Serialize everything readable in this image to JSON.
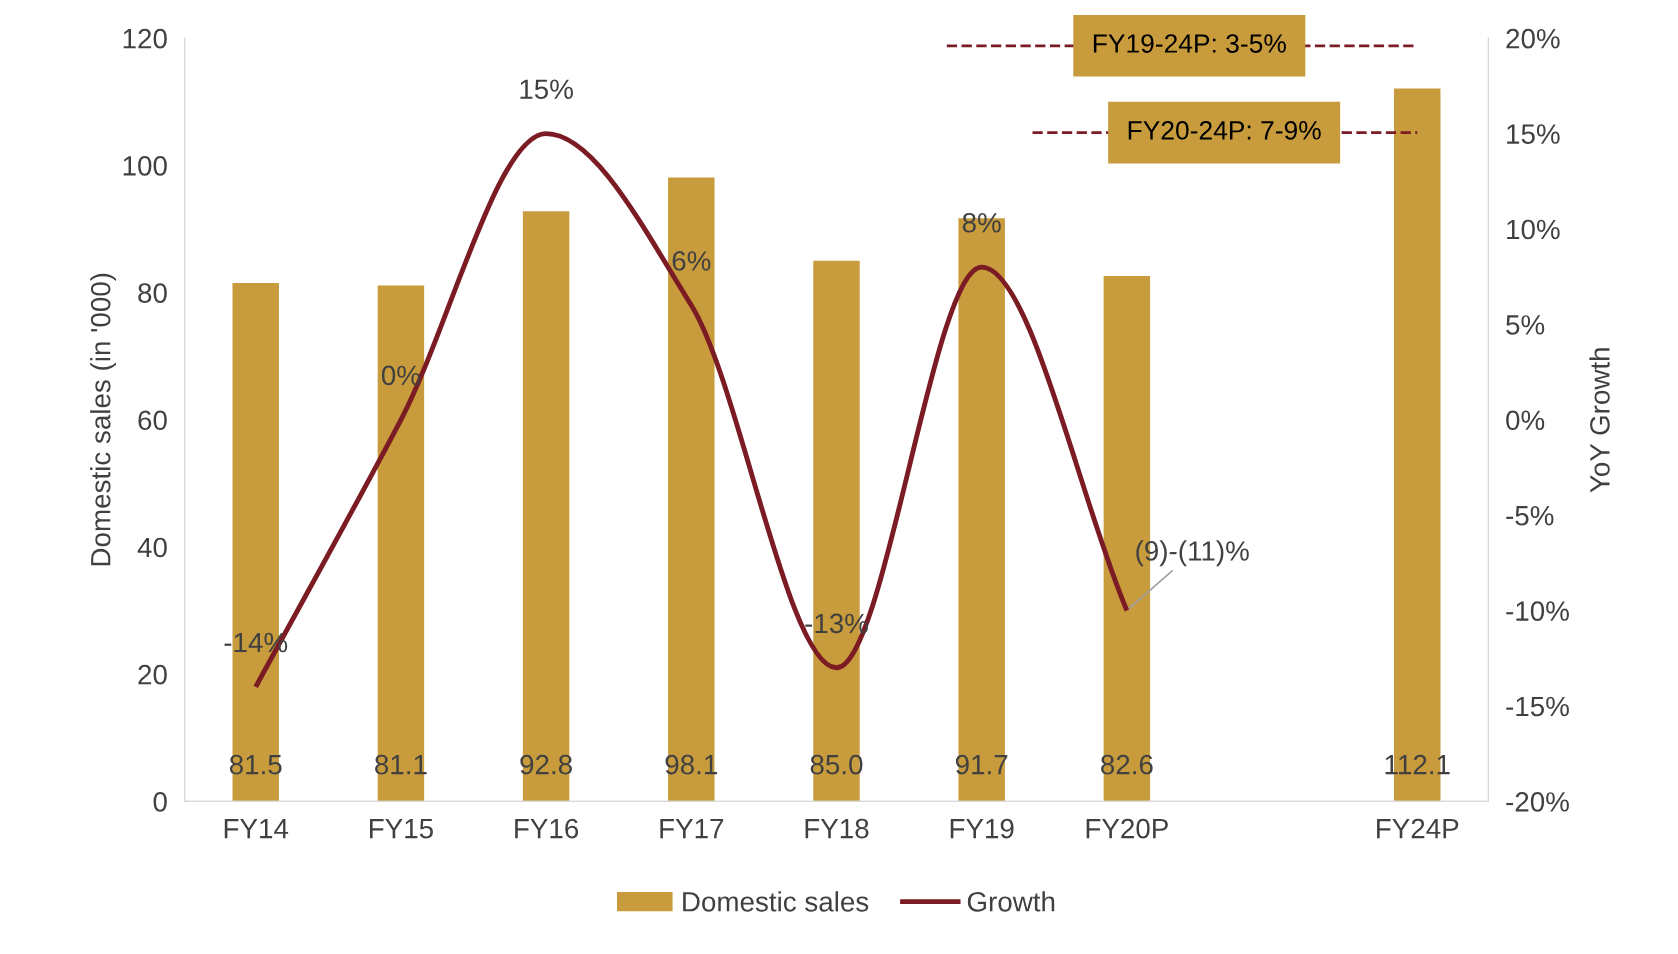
{
  "chart_data": {
    "type": "bar",
    "categories": [
      "FY14",
      "FY15",
      "FY16",
      "FY17",
      "FY18",
      "FY19",
      "FY20P",
      null,
      "FY24P"
    ],
    "ylabel": "Domestic sales (in '000)",
    "y2label": "YoY Growth",
    "ylim": [
      0,
      120
    ],
    "yticks": [
      0,
      20,
      40,
      60,
      80,
      100,
      120
    ],
    "y2lim": [
      -20,
      20
    ],
    "y2ticks": [
      {
        "value": -20,
        "label": "-20%"
      },
      {
        "value": -15,
        "label": "-15%"
      },
      {
        "value": -10,
        "label": "-10%"
      },
      {
        "value": -5,
        "label": "-5%"
      },
      {
        "value": 0,
        "label": "0%"
      },
      {
        "value": 5,
        "label": "5%"
      },
      {
        "value": 10,
        "label": "10%"
      },
      {
        "value": 15,
        "label": "15%"
      },
      {
        "value": 20,
        "label": "20%"
      }
    ],
    "series": [
      {
        "name": "Domestic sales",
        "color": "#c89b3c",
        "values": [
          81.5,
          81.1,
          92.8,
          98.1,
          85.0,
          91.7,
          82.6,
          null,
          112.1
        ],
        "value_labels": [
          "81.5",
          "81.1",
          "92.8",
          "98.1",
          "85.0",
          "91.7",
          "82.6",
          null,
          "112.1"
        ]
      },
      {
        "name": "Growth",
        "type": "line",
        "axis": "y2",
        "color": "#7b1c24",
        "values": [
          -14,
          0,
          15,
          6,
          -13,
          8,
          -10,
          null,
          null
        ],
        "value_labels": [
          "-14%",
          "0%",
          "15%",
          "6%",
          "-13%",
          "8%",
          null,
          null,
          null
        ]
      }
    ],
    "annotations": [
      "FY19-24P: 3-5%",
      "FY20-24P: 7-9%",
      {
        "text": "(9)-(11)%",
        "x": "FY20P",
        "y": 30
      }
    ],
    "legend": "bottom",
    "grid": false
  }
}
